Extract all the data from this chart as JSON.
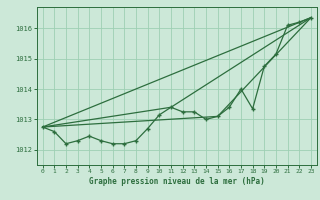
{
  "bg_color": "#cce8d8",
  "grid_color": "#9ecfb4",
  "line_color": "#2d6e3e",
  "title": "Graphe pression niveau de la mer (hPa)",
  "xlim": [
    -0.5,
    23.5
  ],
  "ylim": [
    1011.5,
    1016.7
  ],
  "yticks": [
    1012,
    1013,
    1014,
    1015,
    1016
  ],
  "xticks": [
    0,
    1,
    2,
    3,
    4,
    5,
    6,
    7,
    8,
    9,
    10,
    11,
    12,
    13,
    14,
    15,
    16,
    17,
    18,
    19,
    20,
    21,
    22,
    23
  ],
  "main_x": [
    0,
    1,
    2,
    3,
    4,
    5,
    6,
    7,
    8,
    9,
    10,
    11,
    12,
    13,
    14,
    15,
    16,
    17,
    18,
    19,
    20,
    21,
    22,
    23
  ],
  "main_y": [
    1012.75,
    1012.6,
    1012.2,
    1012.3,
    1012.45,
    1012.3,
    1012.2,
    1012.2,
    1012.3,
    1012.7,
    1013.15,
    1013.4,
    1013.25,
    1013.25,
    1013.0,
    1013.1,
    1013.4,
    1014.0,
    1013.35,
    1014.75,
    1015.15,
    1016.1,
    1016.2,
    1016.35
  ],
  "line2_x": [
    0,
    23
  ],
  "line2_y": [
    1012.75,
    1016.35
  ],
  "line3_x": [
    0,
    11,
    23
  ],
  "line3_y": [
    1012.75,
    1013.4,
    1016.35
  ],
  "line4_x": [
    0,
    15,
    23
  ],
  "line4_y": [
    1012.75,
    1013.1,
    1016.35
  ]
}
